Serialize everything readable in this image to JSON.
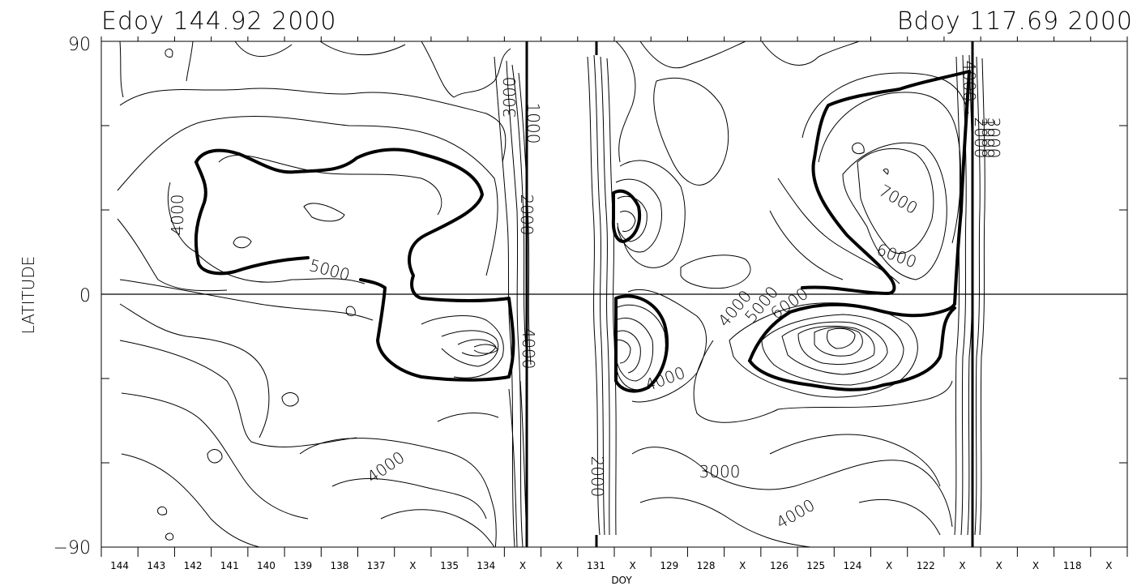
{
  "chart_data": {
    "type": "contour",
    "title_left": "Edoy 144.92 2000",
    "title_right": "Bdoy 117.69 2000",
    "xlabel": "DOY",
    "ylabel": "LATITUDE",
    "ylim": [
      -90,
      90
    ],
    "yticks": [
      "90",
      "0",
      "−90"
    ],
    "xticks": [
      "144",
      "143",
      "142",
      "141",
      "140",
      "139",
      "138",
      "137",
      "X",
      "135",
      "134",
      "X",
      "X",
      "131",
      "X",
      "129",
      "128",
      "X",
      "126",
      "125",
      "124",
      "X",
      "122",
      "X",
      "X",
      "X",
      "118",
      "X"
    ],
    "contour_labels": [
      {
        "text": "1000"
      },
      {
        "text": "2000"
      },
      {
        "text": "3000"
      },
      {
        "text": "4000"
      },
      {
        "text": "5000"
      },
      {
        "text": "4000"
      },
      {
        "text": "4000"
      },
      {
        "text": "2000"
      },
      {
        "text": "4000"
      },
      {
        "text": "4000"
      },
      {
        "text": "5000"
      },
      {
        "text": "6000"
      },
      {
        "text": "7000"
      },
      {
        "text": "6000"
      },
      {
        "text": "3000"
      },
      {
        "text": "4000"
      },
      {
        "text": "4000"
      },
      {
        "text": "2000"
      },
      {
        "text": "1000"
      },
      {
        "text": "3000"
      }
    ],
    "contour_levels": [
      1000,
      2000,
      3000,
      4000,
      5000,
      6000,
      7000
    ],
    "highlighted_level": 5000,
    "zero_line": true,
    "grid": false
  }
}
